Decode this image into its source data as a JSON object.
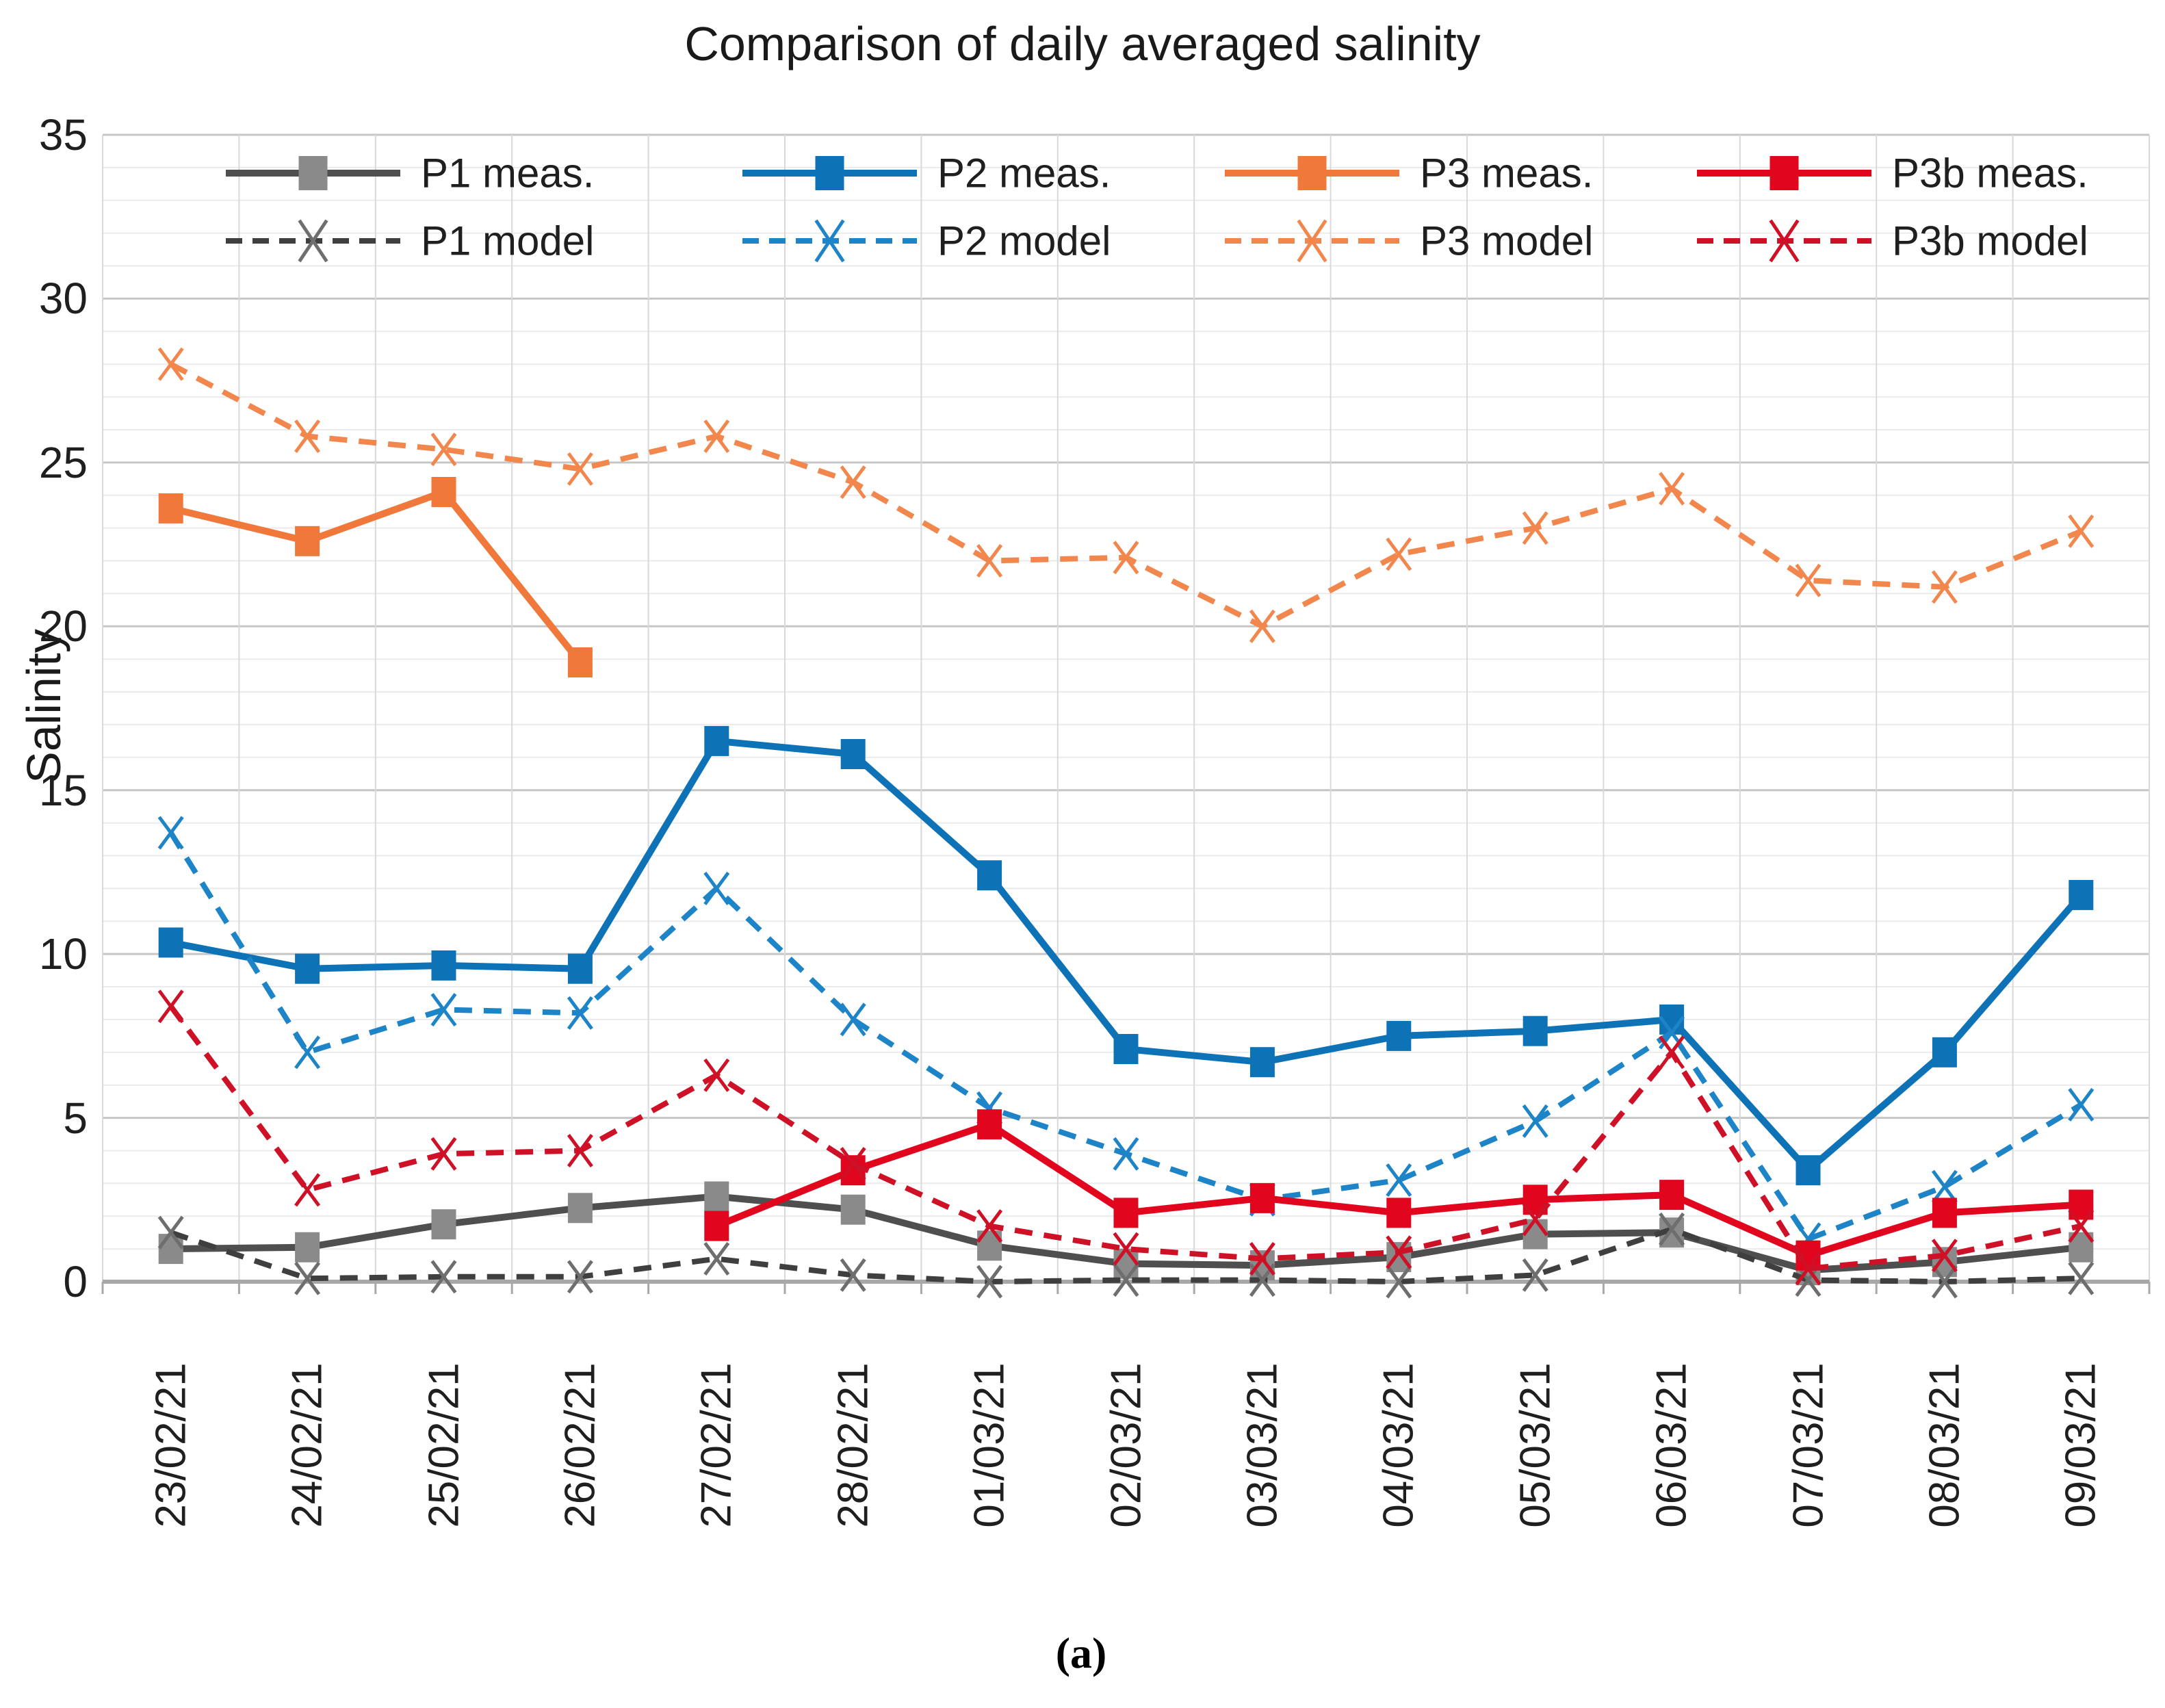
{
  "title": "Comparison of daily averaged salinity",
  "caption": "(a)",
  "y_axis": {
    "label": "Salinity",
    "ticks": [
      35,
      30,
      25,
      20,
      15,
      10,
      5,
      0
    ]
  },
  "x_axis": {
    "tick_rotation_deg": -90
  },
  "colors": {
    "p1_meas_line": "#4f4f4f",
    "p1_meas_marker": "#8a8a8a",
    "p1_model_line": "#3f3f3f",
    "p1_model_marker": "#6e6e6e",
    "p2_meas": "#0e72b7",
    "p2_model": "#1e84c8",
    "p3_meas": "#f0783b",
    "p3_model": "#f2874e",
    "p3b_meas": "#e1051e",
    "p3b_model": "#ce1126",
    "gridline_major": "#c6c6c6",
    "gridline_minor": "#ebebeb",
    "gridline_vertical": "#d9d9d9",
    "axis_line": "#a8a8a8"
  },
  "chart_data": {
    "type": "line",
    "title": "Comparison of daily averaged salinity",
    "xlabel": "",
    "ylabel": "Salinity",
    "ylim": [
      0,
      35
    ],
    "grid": "on",
    "legend_position": "top-inside-two-rows",
    "x": [
      "23/02/21",
      "24/02/21",
      "25/02/21",
      "26/02/21",
      "27/02/21",
      "28/02/21",
      "01/03/21",
      "02/03/21",
      "03/03/21",
      "04/03/21",
      "05/03/21",
      "06/03/21",
      "07/03/21",
      "08/03/21",
      "09/03/21"
    ],
    "series": [
      {
        "id": "p1-meas",
        "name": "P1 meas.",
        "line": "solid",
        "marker": "square",
        "color": "#4f4f4f",
        "marker_color": "#8a8a8a",
        "legend_row": 0,
        "legend_col": 0,
        "values": [
          1.0,
          1.05,
          1.75,
          2.25,
          2.6,
          2.2,
          1.1,
          0.55,
          0.5,
          0.75,
          1.45,
          1.5,
          0.35,
          0.6,
          1.05
        ]
      },
      {
        "id": "p1-model",
        "name": "P1 model",
        "line": "dashed",
        "marker": "x",
        "color": "#3f3f3f",
        "marker_color": "#6e6e6e",
        "legend_row": 1,
        "legend_col": 0,
        "values": [
          1.5,
          0.1,
          0.15,
          0.15,
          0.7,
          0.2,
          0.0,
          0.05,
          0.05,
          0.0,
          0.2,
          1.6,
          0.05,
          0.0,
          0.1
        ]
      },
      {
        "id": "p2-meas",
        "name": "P2 meas.",
        "line": "solid",
        "marker": "square",
        "color": "#0e72b7",
        "marker_color": "#0e72b7",
        "legend_row": 0,
        "legend_col": 1,
        "values": [
          10.35,
          9.55,
          9.65,
          9.55,
          16.5,
          16.1,
          12.4,
          7.1,
          6.7,
          7.5,
          7.65,
          8.0,
          3.4,
          7.0,
          11.8
        ]
      },
      {
        "id": "p2-model",
        "name": "P2 model",
        "line": "dashed",
        "marker": "x",
        "color": "#1e84c8",
        "marker_color": "#1e84c8",
        "legend_row": 1,
        "legend_col": 1,
        "values": [
          13.7,
          7.0,
          8.3,
          8.2,
          12.0,
          8.0,
          5.3,
          3.9,
          2.5,
          3.1,
          4.9,
          7.6,
          1.3,
          2.9,
          5.4
        ]
      },
      {
        "id": "p3-meas",
        "name": "P3 meas.",
        "line": "solid",
        "marker": "square",
        "color": "#f0783b",
        "marker_color": "#f0783b",
        "legend_row": 0,
        "legend_col": 2,
        "values": [
          23.6,
          22.6,
          24.1,
          18.9,
          null,
          null,
          null,
          null,
          null,
          null,
          null,
          null,
          null,
          null,
          null
        ]
      },
      {
        "id": "p3-model",
        "name": "P3 model",
        "line": "dashed",
        "marker": "x",
        "color": "#f2874e",
        "marker_color": "#f2874e",
        "legend_row": 1,
        "legend_col": 2,
        "values": [
          28.0,
          25.8,
          25.4,
          24.8,
          25.8,
          24.4,
          22.0,
          22.1,
          20.0,
          22.2,
          23.0,
          24.2,
          21.4,
          21.2,
          22.9
        ]
      },
      {
        "id": "p3b-meas",
        "name": "P3b meas.",
        "line": "solid",
        "marker": "square",
        "color": "#e1051e",
        "marker_color": "#e1051e",
        "legend_row": 0,
        "legend_col": 3,
        "values": [
          null,
          null,
          null,
          null,
          1.7,
          3.4,
          4.8,
          2.1,
          2.55,
          2.1,
          2.5,
          2.65,
          0.8,
          2.1,
          2.35
        ]
      },
      {
        "id": "p3b-model",
        "name": "P3b model",
        "line": "dashed",
        "marker": "x",
        "color": "#ce1126",
        "marker_color": "#ce1126",
        "legend_row": 1,
        "legend_col": 3,
        "values": [
          8.4,
          2.8,
          3.9,
          4.0,
          6.3,
          3.6,
          1.7,
          1.0,
          0.7,
          0.9,
          1.9,
          7.0,
          0.4,
          0.8,
          1.7
        ]
      }
    ]
  }
}
